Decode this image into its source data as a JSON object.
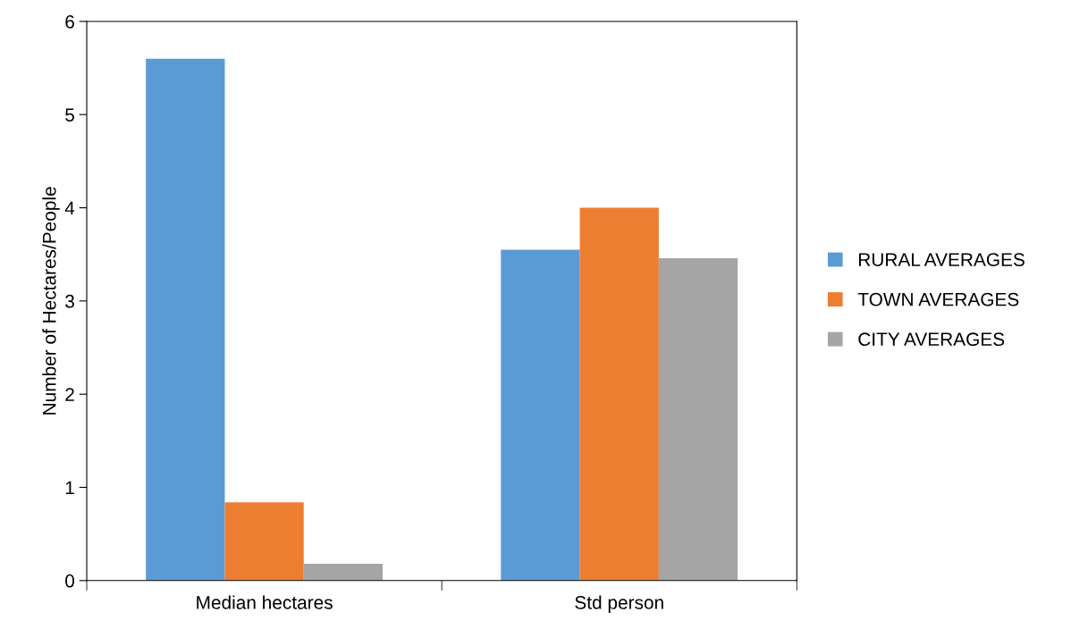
{
  "chart_data": {
    "type": "bar",
    "ylabel": "Number of Hectares/People",
    "categories": [
      "Median hectares",
      "Std person"
    ],
    "series": [
      {
        "name": "RURAL AVERAGES",
        "color": "#5b9bd5",
        "values": [
          5.6,
          3.55
        ]
      },
      {
        "name": "TOWN AVERAGES",
        "color": "#ed7d31",
        "values": [
          0.84,
          4.0
        ]
      },
      {
        "name": "CITY AVERAGES",
        "color": "#a5a5a5",
        "values": [
          0.18,
          3.46
        ]
      }
    ],
    "ylim": [
      0,
      6
    ],
    "yticks": [
      0,
      1,
      2,
      3,
      4,
      5,
      6
    ],
    "grid": false,
    "legend": "right"
  }
}
